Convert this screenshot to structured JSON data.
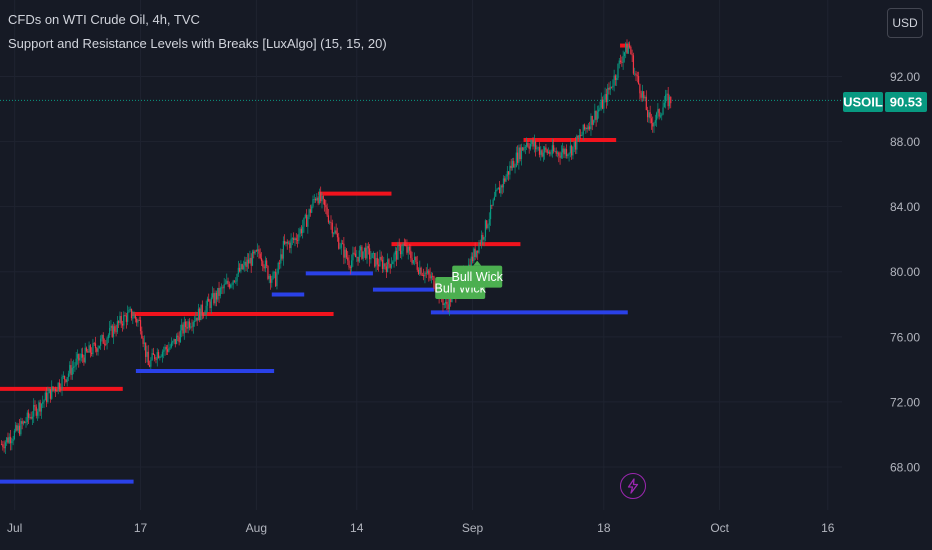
{
  "header": {
    "symbol_title": "CFDs on WTI Crude Oil, 4h, TVC",
    "indicator_title": "Support and Resistance Levels with Breaks [LuxAlgo] (15, 15, 20)"
  },
  "toolbar": {
    "currency_label": "USD"
  },
  "price_tag": {
    "symbol": "USOIL",
    "value": "90.53",
    "color": "#089981"
  },
  "colors": {
    "background": "#161a25",
    "grid": "#1f2330",
    "resistance": "#f2131d",
    "support": "#2a41e8",
    "candle_up": "#089981",
    "candle_down": "#f23645",
    "label_green": "#4caf50",
    "price_line": "#089981",
    "bolt": "#9c27b0"
  },
  "icons": {
    "alert_button": "lightning-bolt-icon"
  },
  "chart_data": {
    "type": "candlestick",
    "symbol": "USOIL",
    "timeframe": "4h",
    "x_tick_labels": [
      "Jul",
      "17",
      "Aug",
      "14",
      "Sep",
      "18",
      "Oct",
      "16"
    ],
    "x_tick_positions": [
      0.7,
      17,
      32,
      45,
      60,
      77,
      92,
      106
    ],
    "x_domain_days_from_jul1": [
      -1.2,
      119.5
    ],
    "y_tick_labels": [
      "92.00",
      "88.00",
      "84.00",
      "80.00",
      "76.00",
      "72.00",
      "68.00"
    ],
    "y_ticks": [
      92,
      88,
      84,
      80,
      76,
      72,
      68
    ],
    "ylim": [
      62.9,
      96.7
    ],
    "last_price": 90.53,
    "price_path": [
      [
        -1.0,
        69.4
      ],
      [
        1,
        70.2
      ],
      [
        3,
        71.3
      ],
      [
        5,
        72.4
      ],
      [
        7,
        73.4
      ],
      [
        9,
        74.6
      ],
      [
        11,
        75.3
      ],
      [
        13,
        76.2
      ],
      [
        15,
        77.2
      ],
      [
        15.8,
        77.4
      ],
      [
        17,
        76.8
      ],
      [
        18,
        74.2
      ],
      [
        19,
        75.0
      ],
      [
        21,
        75.4
      ],
      [
        23,
        76.8
      ],
      [
        25,
        77.6
      ],
      [
        27,
        78.6
      ],
      [
        29,
        79.6
      ],
      [
        31,
        80.6
      ],
      [
        32.5,
        81.2
      ],
      [
        33.5,
        79.9
      ],
      [
        34.5,
        79.5
      ],
      [
        35.5,
        81.5
      ],
      [
        37,
        82.0
      ],
      [
        38.5,
        83.2
      ],
      [
        39.8,
        84.8
      ],
      [
        41,
        83.8
      ],
      [
        42.5,
        82.0
      ],
      [
        44,
        80.6
      ],
      [
        46,
        81.3
      ],
      [
        47.5,
        80.6
      ],
      [
        49,
        80.4
      ],
      [
        51,
        81.6
      ],
      [
        53,
        80.3
      ],
      [
        55,
        79.4
      ],
      [
        56.5,
        77.9
      ],
      [
        57.5,
        78.6
      ],
      [
        59,
        79.8
      ],
      [
        60.5,
        81.4
      ],
      [
        61.5,
        82.5
      ],
      [
        63,
        84.6
      ],
      [
        65,
        86.5
      ],
      [
        67,
        88.0
      ],
      [
        69,
        87.4
      ],
      [
        71,
        87.3
      ],
      [
        73,
        87.6
      ],
      [
        75,
        89.1
      ],
      [
        77,
        90.4
      ],
      [
        78.5,
        92.1
      ],
      [
        79.5,
        93.4
      ],
      [
        80.3,
        93.9
      ],
      [
        81,
        92.2
      ],
      [
        82,
        90.9
      ],
      [
        83,
        89.1
      ],
      [
        84,
        89.6
      ],
      [
        85,
        90.5
      ],
      [
        85.8,
        90.53
      ]
    ],
    "resistance_levels": [
      {
        "x0": -1.2,
        "x1": 14.7,
        "y": 72.8
      },
      {
        "x0": 15.8,
        "x1": 42.0,
        "y": 77.4
      },
      {
        "x0": 40.0,
        "x1": 49.5,
        "y": 84.8
      },
      {
        "x0": 49.5,
        "x1": 66.2,
        "y": 81.7
      },
      {
        "x0": 66.6,
        "x1": 78.6,
        "y": 88.1
      },
      {
        "x0": 79.1,
        "x1": 80.4,
        "y": 93.9
      }
    ],
    "support_levels": [
      {
        "x0": -1.2,
        "x1": 16.1,
        "y": 67.1
      },
      {
        "x0": 16.4,
        "x1": 34.3,
        "y": 73.9
      },
      {
        "x0": 34.0,
        "x1": 38.2,
        "y": 78.6
      },
      {
        "x0": 38.4,
        "x1": 47.1,
        "y": 79.9
      },
      {
        "x0": 47.1,
        "x1": 55.0,
        "y": 78.9
      },
      {
        "x0": 54.6,
        "x1": 80.1,
        "y": 77.5
      }
    ],
    "annotations": [
      {
        "text": "Bull Wick",
        "x": 58.4,
        "y": 79.0,
        "color": "#4caf50"
      },
      {
        "text": "Bull Wick",
        "x": 60.6,
        "y": 79.7,
        "color": "#4caf50"
      }
    ]
  }
}
